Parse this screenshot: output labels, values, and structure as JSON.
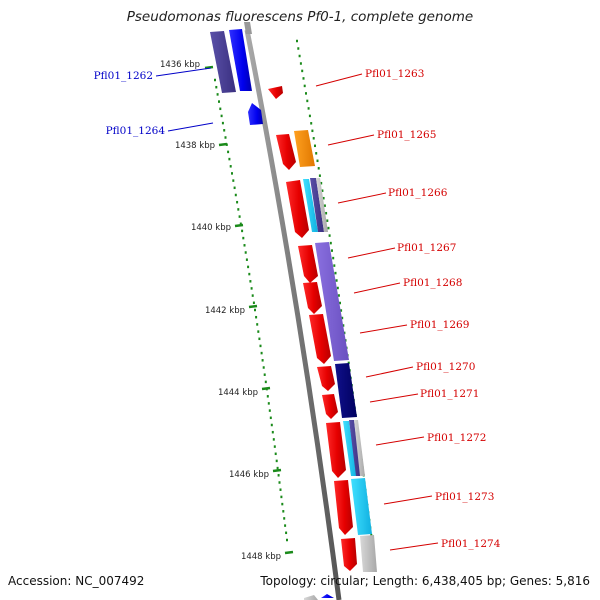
{
  "title": "Pseudomonas fluorescens Pf0-1, complete genome",
  "footer": {
    "accession": "Accession: NC_007492",
    "topology": "Topology: circular; Length: 6,438,405 bp; Genes: 5,816"
  },
  "colors": {
    "forward_strand_label": "#0000c8",
    "reverse_strand_label": "#d40000",
    "backbone": "#8a8a8a",
    "tick": "#1a8a1a"
  },
  "kbp_ticks": [
    {
      "label": "1436 kbp",
      "kbp": 1436
    },
    {
      "label": "1438 kbp",
      "kbp": 1438
    },
    {
      "label": "1440 kbp",
      "kbp": 1440
    },
    {
      "label": "1442 kbp",
      "kbp": 1442
    },
    {
      "label": "1444 kbp",
      "kbp": 1444
    },
    {
      "label": "1446 kbp",
      "kbp": 1446
    },
    {
      "label": "1448 kbp",
      "kbp": 1448
    }
  ],
  "genes": [
    {
      "name": "Pfl01_1262",
      "strand": "forward"
    },
    {
      "name": "Pfl01_1263",
      "strand": "reverse"
    },
    {
      "name": "Pfl01_1264",
      "strand": "forward"
    },
    {
      "name": "Pfl01_1265",
      "strand": "reverse"
    },
    {
      "name": "Pfl01_1266",
      "strand": "reverse"
    },
    {
      "name": "Pfl01_1267",
      "strand": "reverse"
    },
    {
      "name": "Pfl01_1268",
      "strand": "reverse"
    },
    {
      "name": "Pfl01_1269",
      "strand": "reverse"
    },
    {
      "name": "Pfl01_1270",
      "strand": "reverse"
    },
    {
      "name": "Pfl01_1271",
      "strand": "reverse"
    },
    {
      "name": "Pfl01_1272",
      "strand": "reverse"
    },
    {
      "name": "Pfl01_1273",
      "strand": "reverse"
    },
    {
      "name": "Pfl01_1274",
      "strand": "reverse"
    }
  ]
}
